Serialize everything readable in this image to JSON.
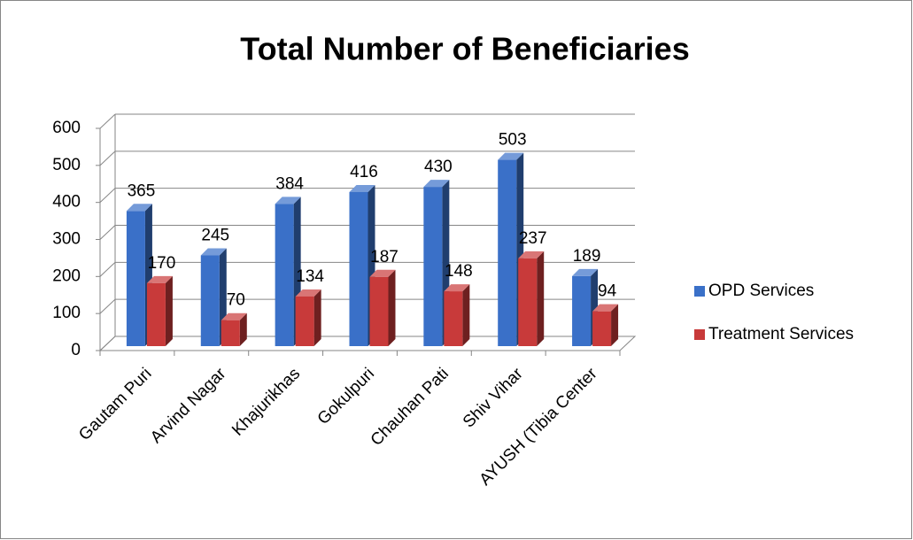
{
  "chart_data": {
    "type": "bar",
    "title": "Total Number of Beneficiaries",
    "categories": [
      "Gautam Puri",
      "Arvind Nagar",
      "Khajurikhas",
      "Gokulpuri",
      "Chauhan Pati",
      "Shiv Vihar",
      "AYUSH (Tibia Center"
    ],
    "series": [
      {
        "name": "OPD Services",
        "color": "#3a70c8",
        "values": [
          365,
          245,
          384,
          416,
          430,
          503,
          189
        ]
      },
      {
        "name": "Treatment Services",
        "color": "#c83a3a",
        "values": [
          170,
          70,
          134,
          187,
          148,
          237,
          94
        ]
      }
    ],
    "ylim": [
      0,
      600
    ],
    "yticks": [
      0,
      100,
      200,
      300,
      400,
      500,
      600
    ],
    "grid": true,
    "legend": "right"
  }
}
